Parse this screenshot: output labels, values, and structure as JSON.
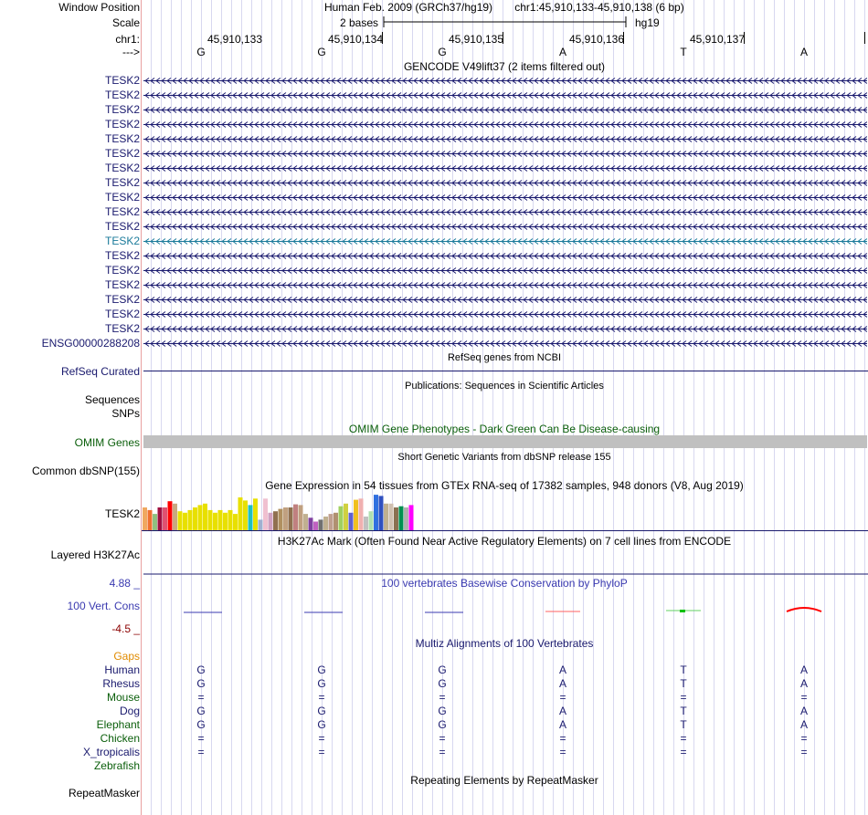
{
  "header": {
    "window_position_label": "Window Position",
    "assembly_text": "Human Feb. 2009 (GRCh37/hg19)",
    "position_text": "chr1:45,910,133-45,910,138 (6 bp)",
    "scale_label": "Scale",
    "scale_text": "2 bases",
    "scale_db": "hg19",
    "chrom_label": "chr1:",
    "strand_label": "--->",
    "ruler_ticks": [
      "45,910,133",
      "45,910,134",
      "45,910,135",
      "45,910,136",
      "45,910,137"
    ],
    "bases": [
      "G",
      "G",
      "G",
      "A",
      "T",
      "A"
    ]
  },
  "gencode": {
    "title": "GENCODE V49lift37 (2 items filtered out)",
    "items": [
      "TESK2",
      "TESK2",
      "TESK2",
      "TESK2",
      "TESK2",
      "TESK2",
      "TESK2",
      "TESK2",
      "TESK2",
      "TESK2",
      "TESK2",
      "TESK2",
      "TESK2",
      "TESK2",
      "TESK2",
      "TESK2",
      "TESK2",
      "TESK2",
      "ENSG00000288208"
    ],
    "highlight_index": 11
  },
  "refseq": {
    "title": "RefSeq genes from NCBI",
    "label": "RefSeq Curated"
  },
  "publications": {
    "title": "Publications: Sequences in Scientific Articles",
    "seq_label": "Sequences",
    "snp_label": "SNPs"
  },
  "omim": {
    "title": "OMIM Gene Phenotypes - Dark Green Can Be Disease-causing",
    "label": "OMIM Genes"
  },
  "dbsnp": {
    "title": "Short Genetic Variants from dbSNP release 155",
    "label": "Common dbSNP(155)"
  },
  "gtex": {
    "title": "Gene Expression in 54 tissues from GTEx RNA-seq of 17382 samples, 948 donors (V8, Aug 2019)",
    "label": "TESK2",
    "bars": [
      {
        "v": 0.62,
        "c": "#f0a860"
      },
      {
        "v": 0.55,
        "c": "#f07030"
      },
      {
        "v": 0.45,
        "c": "#90c080"
      },
      {
        "v": 0.62,
        "c": "#a01040"
      },
      {
        "v": 0.62,
        "c": "#e05070"
      },
      {
        "v": 0.78,
        "c": "#ff0000"
      },
      {
        "v": 0.72,
        "c": "#c8a880"
      },
      {
        "v": 0.52,
        "c": "#e8e000"
      },
      {
        "v": 0.48,
        "c": "#e8e000"
      },
      {
        "v": 0.55,
        "c": "#e8e000"
      },
      {
        "v": 0.62,
        "c": "#e8e000"
      },
      {
        "v": 0.68,
        "c": "#e8e000"
      },
      {
        "v": 0.72,
        "c": "#e8e000"
      },
      {
        "v": 0.55,
        "c": "#e8e000"
      },
      {
        "v": 0.48,
        "c": "#e8e000"
      },
      {
        "v": 0.55,
        "c": "#e8e000"
      },
      {
        "v": 0.48,
        "c": "#e8e000"
      },
      {
        "v": 0.55,
        "c": "#e8e000"
      },
      {
        "v": 0.45,
        "c": "#e8e000"
      },
      {
        "v": 0.88,
        "c": "#e8e000"
      },
      {
        "v": 0.8,
        "c": "#e8e000"
      },
      {
        "v": 0.68,
        "c": "#20c0c0"
      },
      {
        "v": 0.85,
        "c": "#e8e000"
      },
      {
        "v": 0.3,
        "c": "#a0b0d0"
      },
      {
        "v": 0.85,
        "c": "#f0c0d0"
      },
      {
        "v": 0.48,
        "c": "#d0a0c0"
      },
      {
        "v": 0.52,
        "c": "#907050"
      },
      {
        "v": 0.58,
        "c": "#b09060"
      },
      {
        "v": 0.62,
        "c": "#c0a080"
      },
      {
        "v": 0.62,
        "c": "#907050"
      },
      {
        "v": 0.7,
        "c": "#c08080"
      },
      {
        "v": 0.68,
        "c": "#c0a080"
      },
      {
        "v": 0.45,
        "c": "#c0b090"
      },
      {
        "v": 0.35,
        "c": "#8040a0"
      },
      {
        "v": 0.25,
        "c": "#c060c0"
      },
      {
        "v": 0.3,
        "c": "#707070"
      },
      {
        "v": 0.38,
        "c": "#c0b090"
      },
      {
        "v": 0.45,
        "c": "#c0a090"
      },
      {
        "v": 0.48,
        "c": "#b09070"
      },
      {
        "v": 0.65,
        "c": "#a0d060"
      },
      {
        "v": 0.72,
        "c": "#d0d040"
      },
      {
        "v": 0.48,
        "c": "#6060d0"
      },
      {
        "v": 0.82,
        "c": "#f0c020"
      },
      {
        "v": 0.85,
        "c": "#f0b0b0"
      },
      {
        "v": 0.38,
        "c": "#c0c0c0"
      },
      {
        "v": 0.52,
        "c": "#b0e0b0"
      },
      {
        "v": 0.95,
        "c": "#3070e0"
      },
      {
        "v": 0.92,
        "c": "#3050c0"
      },
      {
        "v": 0.72,
        "c": "#c0b090"
      },
      {
        "v": 0.72,
        "c": "#d0c0b0"
      },
      {
        "v": 0.62,
        "c": "#8a7050"
      },
      {
        "v": 0.65,
        "c": "#009050"
      },
      {
        "v": 0.62,
        "c": "#b0b0b0"
      },
      {
        "v": 0.68,
        "c": "#ff00ff"
      }
    ]
  },
  "h3k27ac": {
    "title": "H3K27Ac Mark (Often Found Near Active Regulatory Elements) on 7 cell lines from ENCODE",
    "label": "Layered H3K27Ac"
  },
  "phylop": {
    "title": "100 vertebrates Basewise Conservation by PhyloP",
    "label": "100 Vert. Cons",
    "max_label": "4.88 _",
    "min_label": "-4.5 _"
  },
  "multiz": {
    "title": "Multiz Alignments of 100 Vertebrates",
    "gaps_label": "Gaps",
    "species": [
      {
        "name": "Human",
        "bases": [
          "G",
          "G",
          "G",
          "A",
          "T",
          "A"
        ],
        "color": "navy"
      },
      {
        "name": "Rhesus",
        "bases": [
          "G",
          "G",
          "G",
          "A",
          "T",
          "A"
        ],
        "color": "navy"
      },
      {
        "name": "Mouse",
        "bases": [
          "=",
          "=",
          "=",
          "=",
          "=",
          "="
        ],
        "color": "green"
      },
      {
        "name": "Dog",
        "bases": [
          "G",
          "G",
          "G",
          "A",
          "T",
          "A"
        ],
        "color": "navy"
      },
      {
        "name": "Elephant",
        "bases": [
          "G",
          "G",
          "G",
          "A",
          "T",
          "A"
        ],
        "color": "green"
      },
      {
        "name": "Chicken",
        "bases": [
          "=",
          "=",
          "=",
          "=",
          "=",
          "="
        ],
        "color": "green"
      },
      {
        "name": "X_tropicalis",
        "bases": [
          "=",
          "=",
          "=",
          "=",
          "=",
          "="
        ],
        "color": "navy"
      },
      {
        "name": "Zebrafish",
        "bases": [
          "",
          "",
          "",
          "",
          "",
          ""
        ],
        "color": "green"
      }
    ]
  },
  "repeatmasker": {
    "title": "Repeating Elements by RepeatMasker",
    "label": "RepeatMasker"
  },
  "colors": {
    "gene": "#1a1a6e",
    "gene_highlight": "#1a7a9a",
    "omim_bar": "#c0c0c0",
    "grid": "#d8d8f0",
    "separator": "#e8a0a0",
    "phylop_pos": "#3a3ab0",
    "phylop_neg": "#ff0000"
  }
}
